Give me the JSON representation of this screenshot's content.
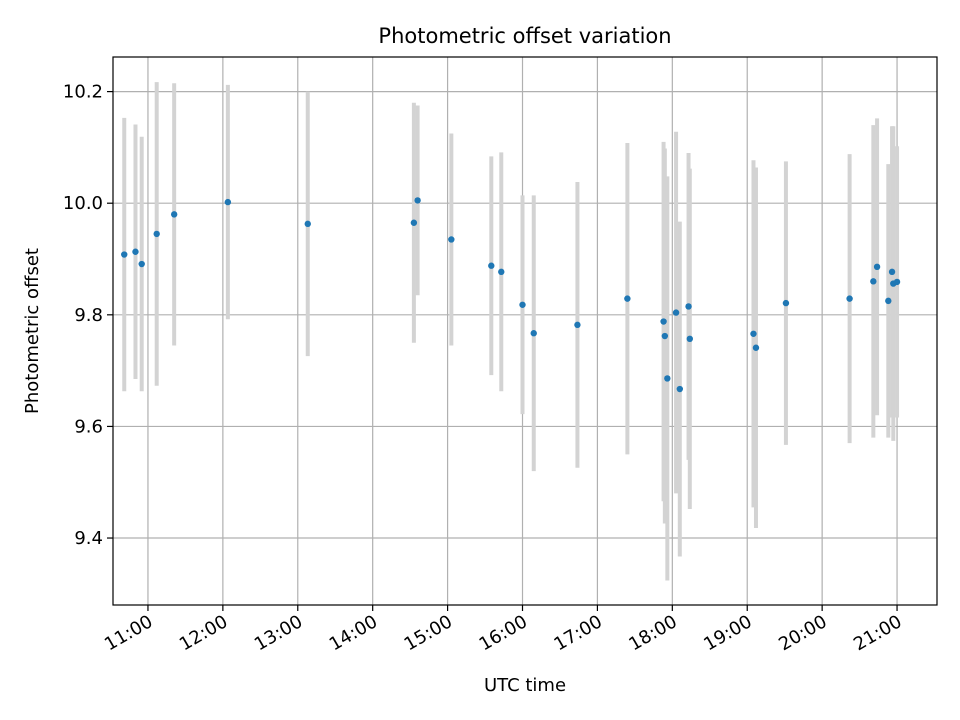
{
  "chart_data": {
    "type": "scatter",
    "title": "Photometric offset variation",
    "xlabel": "UTC time",
    "ylabel": "Photometric offset",
    "grid": true,
    "x_tick_labels": [
      "11:00",
      "12:00",
      "13:00",
      "14:00",
      "15:00",
      "16:00",
      "17:00",
      "18:00",
      "19:00",
      "20:00",
      "21:00"
    ],
    "y_ticks": [
      9.4,
      9.6,
      9.8,
      10.0,
      10.2
    ],
    "y_tick_labels": [
      "9.4",
      "9.6",
      "9.8",
      "10.0",
      "10.2"
    ],
    "xlim": [
      "10:32",
      "21:32"
    ],
    "ylim": [
      9.28,
      10.262
    ],
    "point_color": "#1f77b4",
    "errorbar_color": "#d3d3d3",
    "points": [
      {
        "x": "10:41",
        "y": 9.908,
        "err": 0.245
      },
      {
        "x": "10:50",
        "y": 9.913,
        "err": 0.228
      },
      {
        "x": "10:55",
        "y": 9.891,
        "err": 0.228
      },
      {
        "x": "11:07",
        "y": 9.945,
        "err": 0.272
      },
      {
        "x": "11:21",
        "y": 9.98,
        "err": 0.235
      },
      {
        "x": "12:04",
        "y": 10.002,
        "err": 0.21
      },
      {
        "x": "13:08",
        "y": 9.963,
        "err": 0.237
      },
      {
        "x": "14:33",
        "y": 9.965,
        "err": 0.215
      },
      {
        "x": "14:36",
        "y": 10.005,
        "err": 0.17
      },
      {
        "x": "15:03",
        "y": 9.935,
        "err": 0.19
      },
      {
        "x": "15:35",
        "y": 9.888,
        "err": 0.196
      },
      {
        "x": "15:43",
        "y": 9.877,
        "err": 0.214
      },
      {
        "x": "16:00",
        "y": 9.818,
        "err": 0.196
      },
      {
        "x": "16:09",
        "y": 9.767,
        "err": 0.247
      },
      {
        "x": "16:44",
        "y": 9.782,
        "err": 0.256
      },
      {
        "x": "17:24",
        "y": 9.829,
        "err": 0.279
      },
      {
        "x": "17:53",
        "y": 9.788,
        "err": 0.322
      },
      {
        "x": "17:54",
        "y": 9.762,
        "err": 0.336
      },
      {
        "x": "17:56",
        "y": 9.686,
        "err": 0.362
      },
      {
        "x": "18:03",
        "y": 9.804,
        "err": 0.324
      },
      {
        "x": "18:06",
        "y": 9.667,
        "err": 0.3
      },
      {
        "x": "18:13",
        "y": 9.815,
        "err": 0.275
      },
      {
        "x": "18:14",
        "y": 9.757,
        "err": 0.305
      },
      {
        "x": "19:05",
        "y": 9.766,
        "err": 0.311
      },
      {
        "x": "19:07",
        "y": 9.741,
        "err": 0.323
      },
      {
        "x": "19:31",
        "y": 9.821,
        "err": 0.254
      },
      {
        "x": "20:22",
        "y": 9.829,
        "err": 0.259
      },
      {
        "x": "20:41",
        "y": 9.86,
        "err": 0.28
      },
      {
        "x": "20:44",
        "y": 9.886,
        "err": 0.266
      },
      {
        "x": "20:53",
        "y": 9.825,
        "err": 0.245
      },
      {
        "x": "20:56",
        "y": 9.877,
        "err": 0.261
      },
      {
        "x": "20:57",
        "y": 9.856,
        "err": 0.282
      },
      {
        "x": "21:00",
        "y": 9.859,
        "err": 0.243
      }
    ]
  }
}
